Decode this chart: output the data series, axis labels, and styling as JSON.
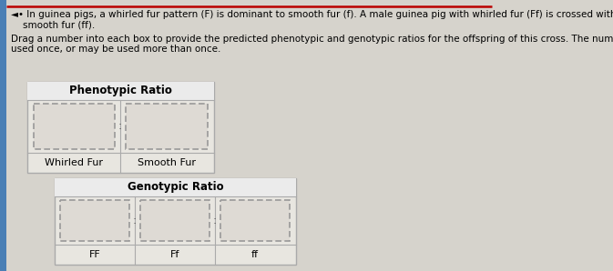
{
  "title_line1": "◄• In guinea pigs, a whirled fur pattern (F) is dominant to smooth fur (f). A male guinea pig with whirled fur (Ff) is crossed with a female guinea pig with",
  "title_line2": "    smooth fur (ff).",
  "instruction_line1": "Drag a number into each box to provide the predicted phenotypic and genotypic ratios for the offspring of this cross. The numbers may not be used, may be",
  "instruction_line2": "used once, or may be used more than once.",
  "phenotypic_label": "Phenotypic Ratio",
  "phenotypic_items": [
    "Whirled Fur",
    "Smooth Fur"
  ],
  "genotypic_label": "Genotypic Ratio",
  "genotypic_items": [
    "FF",
    "Ff",
    "ff"
  ],
  "bg_color": "#d6d3cc",
  "panel_bg": "#e8e6e0",
  "white": "#ffffff",
  "dashed_box_color": "#999999",
  "dashed_box_fill": "#dedad4",
  "text_color": "#000000",
  "border_color": "#aaaaaa",
  "title_fontsize": 7.5,
  "label_fontsize": 8.5,
  "item_fontsize": 8.0,
  "red_line_color": "#bb0000",
  "blue_left_bar": "#4a7fb5",
  "colon_color": "#555555"
}
